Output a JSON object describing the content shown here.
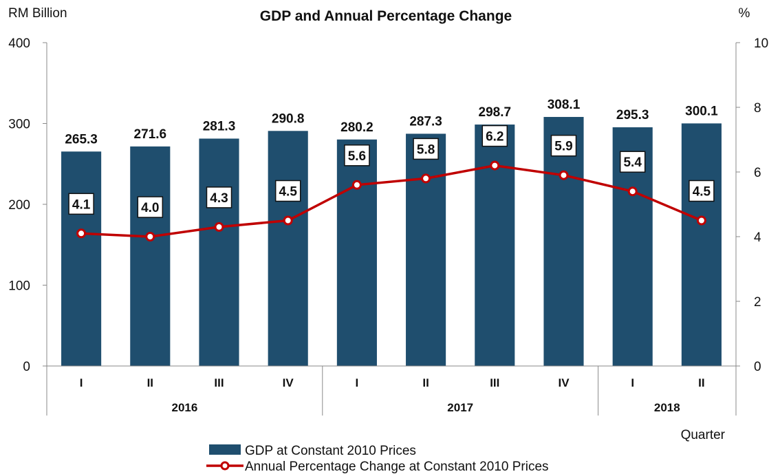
{
  "chart_data": {
    "type": "bar",
    "title": "GDP and Annual Percentage Change",
    "ylabel_left": "RM Billion",
    "ylabel_right": "%",
    "xlabel": "Quarter",
    "ylim_left": [
      0,
      400
    ],
    "yticks_left": [
      0,
      100,
      200,
      300,
      400
    ],
    "ylim_right": [
      0,
      10
    ],
    "yticks_right": [
      0,
      2,
      4,
      6,
      8,
      10
    ],
    "categories": [
      "I",
      "II",
      "III",
      "IV",
      "I",
      "II",
      "III",
      "IV",
      "I",
      "II"
    ],
    "groups": [
      {
        "label": "2016",
        "count": 4
      },
      {
        "label": "2017",
        "count": 4
      },
      {
        "label": "2018",
        "count": 2
      }
    ],
    "series": [
      {
        "name": "GDP at Constant 2010 Prices",
        "type": "bar",
        "axis": "left",
        "color": "#1f4e6e",
        "values": [
          265.3,
          271.6,
          281.3,
          290.8,
          280.2,
          287.3,
          298.7,
          308.1,
          295.3,
          300.1
        ],
        "labels": [
          "265.3",
          "271.6",
          "281.3",
          "290.8",
          "280.2",
          "287.3",
          "298.7",
          "308.1",
          "295.3",
          "300.1"
        ]
      },
      {
        "name": "Annual Percentage Change at Constant 2010 Prices",
        "type": "line",
        "axis": "right",
        "color": "#c00000",
        "values": [
          4.1,
          4.0,
          4.3,
          4.5,
          5.6,
          5.8,
          6.2,
          5.9,
          5.4,
          4.5
        ],
        "labels": [
          "4.1",
          "4.0",
          "4.3",
          "4.5",
          "5.6",
          "5.8",
          "6.2",
          "5.9",
          "5.4",
          "4.5"
        ]
      }
    ],
    "legend_position": "bottom-center",
    "grid": false
  }
}
